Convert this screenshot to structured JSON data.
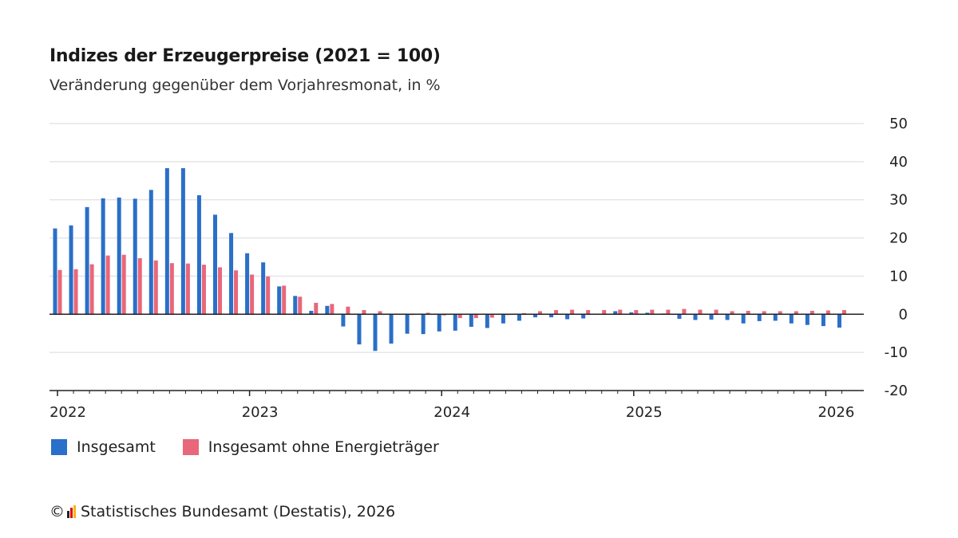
{
  "header": {
    "title": "Indizes der Erzeugerpreise (2021 = 100)",
    "subtitle": "Veränderung gegenüber dem Vorjahresmonat, in %"
  },
  "legend": {
    "items": [
      {
        "label": "Insgesamt",
        "color": "#2a6fc9"
      },
      {
        "label": "Insgesamt ohne Energieträger",
        "color": "#e8677a"
      }
    ]
  },
  "footer": {
    "copyright_symbol": "©",
    "source": "Statistisches Bundesamt (Destatis), 2026",
    "logo_colors": [
      "#222222",
      "#e3000f",
      "#f5b700"
    ]
  },
  "chart_data": {
    "type": "bar",
    "y_axis_position": "right",
    "ylim": [
      -20,
      50
    ],
    "yticks": [
      50,
      40,
      30,
      20,
      10,
      0,
      -10,
      -20
    ],
    "grid": true,
    "legend_position": "bottom-left",
    "xticks": [
      {
        "label": "2022",
        "index": 0
      },
      {
        "label": "2023",
        "index": 12
      },
      {
        "label": "2024",
        "index": 24
      },
      {
        "label": "2025",
        "index": 36
      },
      {
        "label": "2026",
        "index": 48
      }
    ],
    "categories": [
      "2022-01",
      "2022-02",
      "2022-03",
      "2022-04",
      "2022-05",
      "2022-06",
      "2022-07",
      "2022-08",
      "2022-09",
      "2022-10",
      "2022-11",
      "2022-12",
      "2023-01",
      "2023-02",
      "2023-03",
      "2023-04",
      "2023-05",
      "2023-06",
      "2023-07",
      "2023-08",
      "2023-09",
      "2023-10",
      "2023-11",
      "2023-12",
      "2024-01",
      "2024-02",
      "2024-03",
      "2024-04",
      "2024-05",
      "2024-06",
      "2024-07",
      "2024-08",
      "2024-09",
      "2024-10",
      "2024-11",
      "2024-12",
      "2025-01",
      "2025-02",
      "2025-03",
      "2025-04",
      "2025-05",
      "2025-06",
      "2025-07",
      "2025-08",
      "2025-09",
      "2025-10",
      "2025-11",
      "2025-12",
      "2026-01",
      "2026-02"
    ],
    "series": [
      {
        "name": "Insgesamt",
        "color": "#2a6fc9",
        "values": [
          22.5,
          23.3,
          28.1,
          30.4,
          30.6,
          30.3,
          32.6,
          38.3,
          38.3,
          31.2,
          26.1,
          21.3,
          16.0,
          13.6,
          7.3,
          4.8,
          0.9,
          2.2,
          -3.2,
          -7.9,
          -9.6,
          -7.7,
          -5.1,
          -5.2,
          -4.5,
          -4.3,
          -3.3,
          -3.6,
          -2.4,
          -1.7,
          -0.8,
          -0.8,
          -1.3,
          -1.1,
          0.1,
          0.8,
          0.5,
          0.4,
          0.2,
          -1.2,
          -1.5,
          -1.4,
          -1.5,
          -2.4,
          -1.8,
          -1.7,
          -2.4,
          -2.8,
          -3.1,
          -3.5
        ]
      },
      {
        "name": "Insgesamt ohne Energieträger",
        "color": "#e8677a",
        "values": [
          11.6,
          11.8,
          13.1,
          15.4,
          15.6,
          14.7,
          14.1,
          13.4,
          13.3,
          13.0,
          12.3,
          11.5,
          10.4,
          9.9,
          7.5,
          4.6,
          3.0,
          2.7,
          2.0,
          1.1,
          0.8,
          0.1,
          -0.2,
          0.4,
          -0.3,
          -1.0,
          -1.0,
          -0.9,
          -0.2,
          0.3,
          0.8,
          1.1,
          1.2,
          1.1,
          1.1,
          1.2,
          1.1,
          1.2,
          1.2,
          1.4,
          1.2,
          1.2,
          0.8,
          0.9,
          0.8,
          0.8,
          0.8,
          0.9,
          1.0,
          1.1
        ]
      }
    ]
  }
}
